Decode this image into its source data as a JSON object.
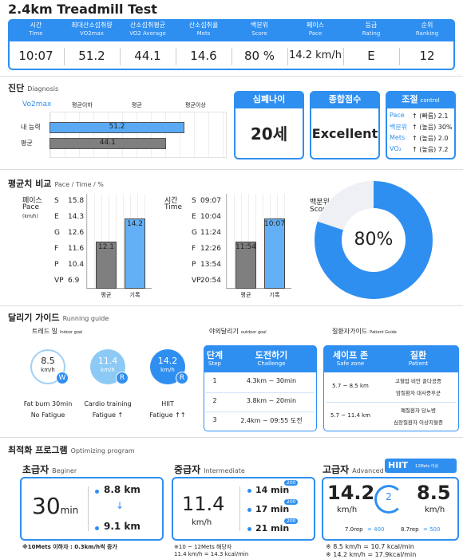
{
  "header": {
    "title": "2.4km Treadmill Test",
    "metrics": [
      {
        "label": "시간",
        "sub": "Time",
        "value": "10:07"
      },
      {
        "label": "최대산소섭취량",
        "sub": "VO2max",
        "value": "51.2"
      },
      {
        "label": "산소섭취평균",
        "sub": "VO2 Average",
        "value": "44.1"
      },
      {
        "label": "산소섭취율",
        "sub": "Mets",
        "value": "14.6"
      },
      {
        "label": "백분위",
        "sub": "Score",
        "value": "80 %"
      },
      {
        "label": "페이스",
        "sub": "Pace",
        "value": "14.2 km/h"
      },
      {
        "label": "등급",
        "sub": "Rating",
        "value": "E"
      },
      {
        "label": "순위",
        "sub": "Ranking",
        "value": "12"
      }
    ]
  },
  "diagnosis": {
    "title": "진단",
    "subtitle": "Diagnosis",
    "axis_label": "Vo2max",
    "levels": [
      "평균이하",
      "평균",
      "평균이상"
    ],
    "bars": [
      {
        "name": "내 능력",
        "value": 51.2,
        "color": "#5aa9f5"
      },
      {
        "name": "평균",
        "value": 44.1,
        "color": "#7f7f7f"
      }
    ],
    "cards": [
      {
        "title": "심폐나이",
        "value": "20세"
      },
      {
        "title": "종합점수",
        "value": "Excellent"
      }
    ],
    "control": {
      "title": "조절",
      "subtitle": "control",
      "rows": [
        [
          "Pace",
          "↑ (빠름) 2.1"
        ],
        [
          "백분위",
          "↑ (높음) 30%"
        ],
        [
          "Mets",
          "↑ (높음) 2.0"
        ],
        [
          "VO₂",
          "↑ (높음) 7.2"
        ]
      ]
    }
  },
  "comparison": {
    "title": "평균치 비교",
    "subtitle": "Pace / Time / %",
    "pace": {
      "label": "페이스",
      "sub": "Pace",
      "unit": "(km/h)",
      "grades": [
        "S",
        "E",
        "G",
        "F",
        "P",
        "VP"
      ],
      "scale": [
        15.8,
        14.3,
        12.6,
        11.6,
        10.4,
        6.9
      ],
      "categories": [
        "평균",
        "기록"
      ],
      "values": [
        12.1,
        14.2
      ]
    },
    "time": {
      "label": "시간",
      "sub": "Time",
      "grades": [
        "S",
        "E",
        "G",
        "F",
        "P",
        "VP"
      ],
      "scale": [
        "09:07",
        "10:04",
        "11:24",
        "12:26",
        "13:54",
        "20:54"
      ],
      "categories": [
        "평균",
        "기록"
      ],
      "values": [
        "11:54",
        "10:07"
      ]
    },
    "score": {
      "label": "백분위",
      "sub": "Score",
      "value": 80,
      "value_label": "80%"
    }
  },
  "guide": {
    "title": "달리기 가이드",
    "subtitle": "Running guide",
    "groups": [
      [
        "트레드 밀",
        "Indoor goal"
      ],
      [
        "야외달리기",
        "outdoor goal"
      ],
      [
        "질환자가이드",
        "Patient Guide"
      ]
    ],
    "modes": [
      {
        "speed": "8.5",
        "unit": "km/h",
        "badge": "W",
        "caption": "Fat burn 30min",
        "fatigue": "No Fatigue"
      },
      {
        "speed": "11.4",
        "unit": "km/h",
        "badge": "R",
        "caption": "Cardio training",
        "fatigue": "Fatigue ↑"
      },
      {
        "speed": "14.2",
        "unit": "km/h",
        "badge": "R",
        "caption": "HIIT",
        "fatigue": "Fatigue ↑↑"
      }
    ],
    "steps": {
      "header": [
        [
          "단계",
          "Step"
        ],
        [
          "도전하기",
          "Challenge"
        ]
      ],
      "rows": [
        [
          "1",
          "4.3km ~ 30min"
        ],
        [
          "2",
          "3.8km ~ 20min"
        ],
        [
          "3",
          "2.4km ~ 09:55 도전"
        ]
      ]
    },
    "patients": {
      "header": [
        [
          "세이프 존",
          "Safe zone"
        ],
        [
          "질환",
          "Patient"
        ]
      ],
      "rows": [
        {
          "zone": "5.7 ~ 8.5 km",
          "items": [
            "고혈압 비만 골다공증",
            "암질환자 대사증후군"
          ]
        },
        {
          "zone": "5.7 ~ 11.4 km",
          "items": [
            "폐질환자 당뇨병",
            "심장질환자 이상지혈증"
          ]
        }
      ]
    }
  },
  "program": {
    "title": "최적화 프로그램",
    "subtitle": "Optimizing program",
    "beginner": {
      "title": "초급자",
      "subtitle": "Beginer",
      "time": "30",
      "time_unit": "min",
      "from": "8.8 km",
      "arrow": "↓",
      "to": "9.1 km",
      "note": "※10Mets 이하자 : 0.3km/h씩 증가"
    },
    "intermediate": {
      "title": "중급자",
      "subtitle": "Intermediate",
      "speed": "11.4",
      "unit": "km/h",
      "intervals": [
        {
          "time": "14 min",
          "dist": "200"
        },
        {
          "time": "17 min",
          "dist": "200"
        },
        {
          "time": "21 min",
          "dist": "200"
        }
      ],
      "notes": [
        "※10 ~ 12Mets 해당자",
        "11.4 km/h = 14.3 kcal/min"
      ]
    },
    "advanced": {
      "title": "고급자",
      "subtitle": "Advanced",
      "badge": "HIIT",
      "badge_sub": "12Mets 이상",
      "high": "14.2",
      "low": "8.5",
      "unit": "km/h",
      "cycle": "2",
      "reps": [
        [
          "7.0rep",
          "= 400"
        ],
        [
          "8.7rep",
          "= 500"
        ]
      ],
      "notes": [
        "※ 8.5 km/h = 10.7 kcal/min",
        "※ 14.2 km/h = 17.9kcal/min"
      ]
    }
  }
}
